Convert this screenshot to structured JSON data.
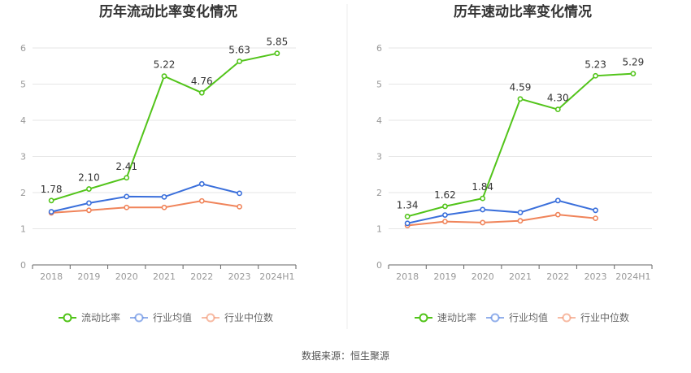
{
  "chart_data": [
    {
      "type": "line",
      "title": "历年流动比率变化情况",
      "categories": [
        "2018",
        "2019",
        "2020",
        "2021",
        "2022",
        "2023",
        "2024H1"
      ],
      "ylim": [
        0,
        6
      ],
      "yticks": [
        0,
        1,
        2,
        3,
        4,
        5,
        6
      ],
      "grid": true,
      "legend_position": "bottom",
      "series": [
        {
          "name": "流动比率",
          "color": "#52c41a",
          "labeled": true,
          "values": [
            1.78,
            2.1,
            2.41,
            5.22,
            4.76,
            5.63,
            5.85
          ],
          "labels": [
            "1.78",
            "2.10",
            "2.41",
            "5.22",
            "4.76",
            "5.63",
            "5.85"
          ]
        },
        {
          "name": "行业均值",
          "color": "#3a6fdb",
          "labeled": false,
          "values": [
            1.47,
            1.71,
            1.89,
            1.88,
            2.24,
            1.98,
            null
          ]
        },
        {
          "name": "行业中位数",
          "color": "#f0845a",
          "labeled": false,
          "values": [
            1.44,
            1.51,
            1.59,
            1.59,
            1.77,
            1.61,
            null
          ]
        }
      ]
    },
    {
      "type": "line",
      "title": "历年速动比率变化情况",
      "categories": [
        "2018",
        "2019",
        "2020",
        "2021",
        "2022",
        "2023",
        "2024H1"
      ],
      "ylim": [
        0,
        6
      ],
      "yticks": [
        0,
        1,
        2,
        3,
        4,
        5,
        6
      ],
      "grid": true,
      "legend_position": "bottom",
      "series": [
        {
          "name": "速动比率",
          "color": "#52c41a",
          "labeled": true,
          "values": [
            1.34,
            1.62,
            1.84,
            4.59,
            4.3,
            5.23,
            5.29
          ],
          "labels": [
            "1.34",
            "1.62",
            "1.84",
            "4.59",
            "4.30",
            "5.23",
            "5.29"
          ]
        },
        {
          "name": "行业均值",
          "color": "#3a6fdb",
          "labeled": false,
          "values": [
            1.15,
            1.38,
            1.53,
            1.45,
            1.78,
            1.51,
            null
          ]
        },
        {
          "name": "行业中位数",
          "color": "#f0845a",
          "labeled": false,
          "values": [
            1.09,
            1.2,
            1.17,
            1.22,
            1.39,
            1.29,
            null
          ]
        }
      ]
    }
  ],
  "footer": {
    "source": "数据来源：恒生聚源"
  }
}
